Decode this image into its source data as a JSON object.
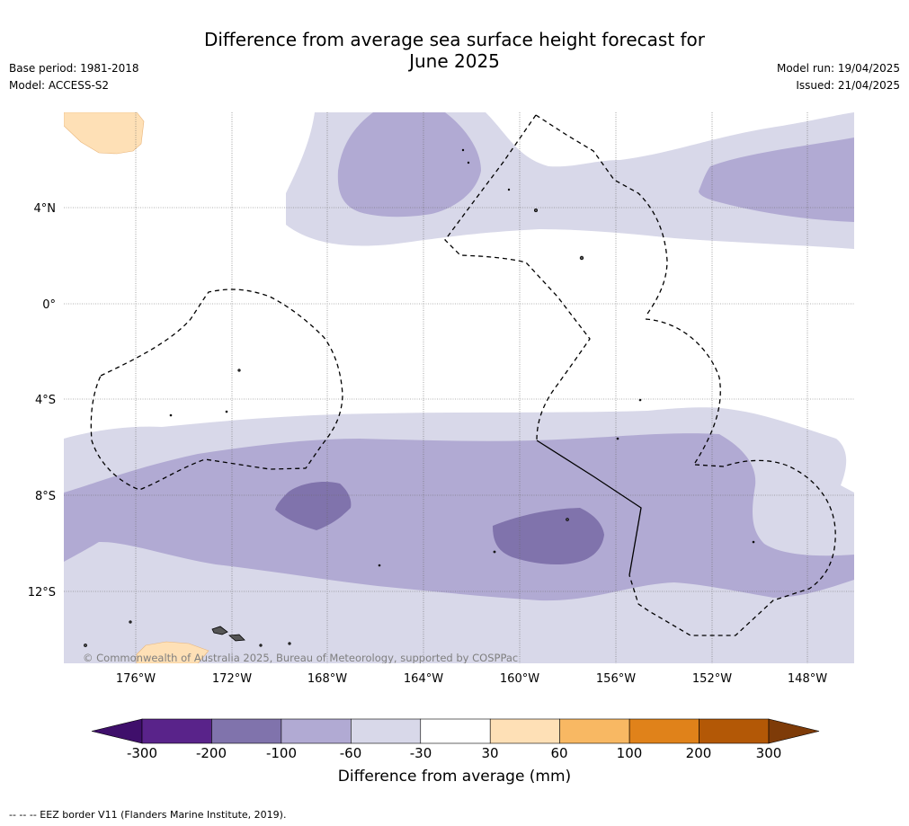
{
  "title_line1": "Difference from average sea surface height forecast for",
  "title_line2": "June 2025",
  "meta_left": {
    "base_period": "Base period: 1981-2018",
    "model": "Model: ACCESS-S2"
  },
  "meta_right": {
    "model_run": "Model run: 19/04/2025",
    "issued": "Issued: 21/04/2025"
  },
  "lat_labels": [
    "4°N",
    "0°",
    "4°S",
    "8°S",
    "12°S"
  ],
  "lon_labels": [
    "176°W",
    "172°W",
    "168°W",
    "164°W",
    "160°W",
    "156°W",
    "152°W",
    "148°W"
  ],
  "copyright": "© Commonwealth of Australia 2025, Bureau of Meteorology, supported by COSPPac",
  "colorbar": {
    "ticks": [
      "-300",
      "-200",
      "-100",
      "-60",
      "-30",
      "30",
      "60",
      "100",
      "200",
      "300"
    ],
    "colors": [
      "#3f0f6b",
      "#59238a",
      "#8073ac",
      "#b1aad3",
      "#d8d8e9",
      "#ffffff",
      "#fee0b6",
      "#f8b863",
      "#e0821a",
      "#b35806",
      "#7e3b08"
    ],
    "label": "Difference from average (mm)"
  },
  "footnote": "--  --  -- EEZ border V11 (Flanders Marine Institute, 2019)."
}
